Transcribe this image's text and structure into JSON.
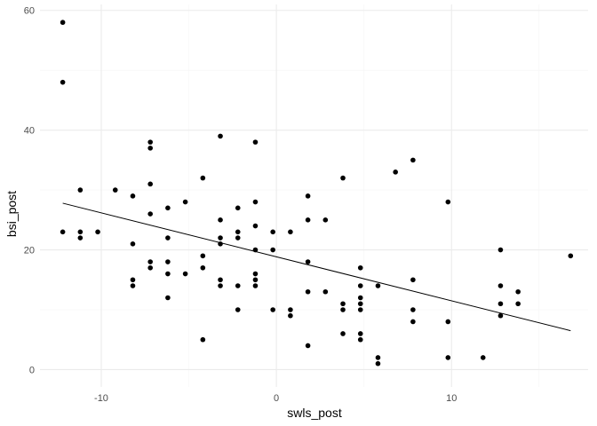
{
  "chart_data": {
    "type": "scatter",
    "title": "",
    "xlabel": "swls_post",
    "ylabel": "bsi_post",
    "xlim": [
      -13.5,
      17.8
    ],
    "ylim": [
      -2.9,
      61
    ],
    "x_ticks": [
      -10,
      0,
      10
    ],
    "y_ticks": [
      0,
      20,
      40,
      60
    ],
    "grid": true,
    "colors": {
      "points": "#000000",
      "grid_major": "#ebebeb",
      "grid_minor": "#f5f5f5",
      "tick_text": "#4d4d4d"
    },
    "points": [
      [
        -12.2,
        58
      ],
      [
        -12.2,
        48
      ],
      [
        -12.2,
        23
      ],
      [
        -11.2,
        30
      ],
      [
        -11.2,
        23
      ],
      [
        -11.2,
        22
      ],
      [
        -10.2,
        23
      ],
      [
        -9.2,
        30
      ],
      [
        -8.2,
        29
      ],
      [
        -8.2,
        21
      ],
      [
        -8.2,
        15
      ],
      [
        -8.2,
        14
      ],
      [
        -7.2,
        38
      ],
      [
        -7.2,
        37
      ],
      [
        -7.2,
        31
      ],
      [
        -7.2,
        26
      ],
      [
        -7.2,
        18
      ],
      [
        -7.2,
        17
      ],
      [
        -6.2,
        27
      ],
      [
        -6.2,
        22
      ],
      [
        -6.2,
        18
      ],
      [
        -6.2,
        16
      ],
      [
        -6.2,
        12
      ],
      [
        -5.2,
        28
      ],
      [
        -5.2,
        16
      ],
      [
        -4.2,
        32
      ],
      [
        -4.2,
        19
      ],
      [
        -4.2,
        17
      ],
      [
        -4.2,
        5
      ],
      [
        -3.2,
        39
      ],
      [
        -3.2,
        25
      ],
      [
        -3.2,
        22
      ],
      [
        -3.2,
        21
      ],
      [
        -3.2,
        15
      ],
      [
        -3.2,
        14
      ],
      [
        -2.2,
        27
      ],
      [
        -2.2,
        23
      ],
      [
        -2.2,
        22
      ],
      [
        -2.2,
        14
      ],
      [
        -2.2,
        10
      ],
      [
        -1.2,
        38
      ],
      [
        -1.2,
        28
      ],
      [
        -1.2,
        24
      ],
      [
        -1.2,
        20
      ],
      [
        -1.2,
        16
      ],
      [
        -1.2,
        15
      ],
      [
        -1.2,
        14
      ],
      [
        -0.2,
        23
      ],
      [
        -0.2,
        20
      ],
      [
        -0.2,
        10
      ],
      [
        0.8,
        23
      ],
      [
        0.8,
        10
      ],
      [
        0.8,
        9
      ],
      [
        1.8,
        29
      ],
      [
        1.8,
        25
      ],
      [
        1.8,
        18
      ],
      [
        1.8,
        13
      ],
      [
        1.8,
        4
      ],
      [
        2.8,
        25
      ],
      [
        2.8,
        13
      ],
      [
        3.8,
        32
      ],
      [
        3.8,
        11
      ],
      [
        3.8,
        10
      ],
      [
        3.8,
        6
      ],
      [
        4.8,
        17
      ],
      [
        4.8,
        14
      ],
      [
        4.8,
        12
      ],
      [
        4.8,
        11
      ],
      [
        4.8,
        10
      ],
      [
        4.8,
        6
      ],
      [
        4.8,
        5
      ],
      [
        5.8,
        14
      ],
      [
        5.8,
        2
      ],
      [
        5.8,
        1
      ],
      [
        6.8,
        33
      ],
      [
        7.8,
        35
      ],
      [
        7.8,
        15
      ],
      [
        7.8,
        10
      ],
      [
        7.8,
        8
      ],
      [
        9.8,
        28
      ],
      [
        9.8,
        8
      ],
      [
        9.8,
        2
      ],
      [
        11.8,
        2
      ],
      [
        12.8,
        20
      ],
      [
        12.8,
        14
      ],
      [
        12.8,
        11
      ],
      [
        12.8,
        9
      ],
      [
        13.8,
        13
      ],
      [
        13.8,
        11
      ],
      [
        16.8,
        19
      ]
    ],
    "fit_line": {
      "x": [
        -12.2,
        16.8
      ],
      "y": [
        27.8,
        6.5
      ],
      "color": "#000000"
    }
  }
}
